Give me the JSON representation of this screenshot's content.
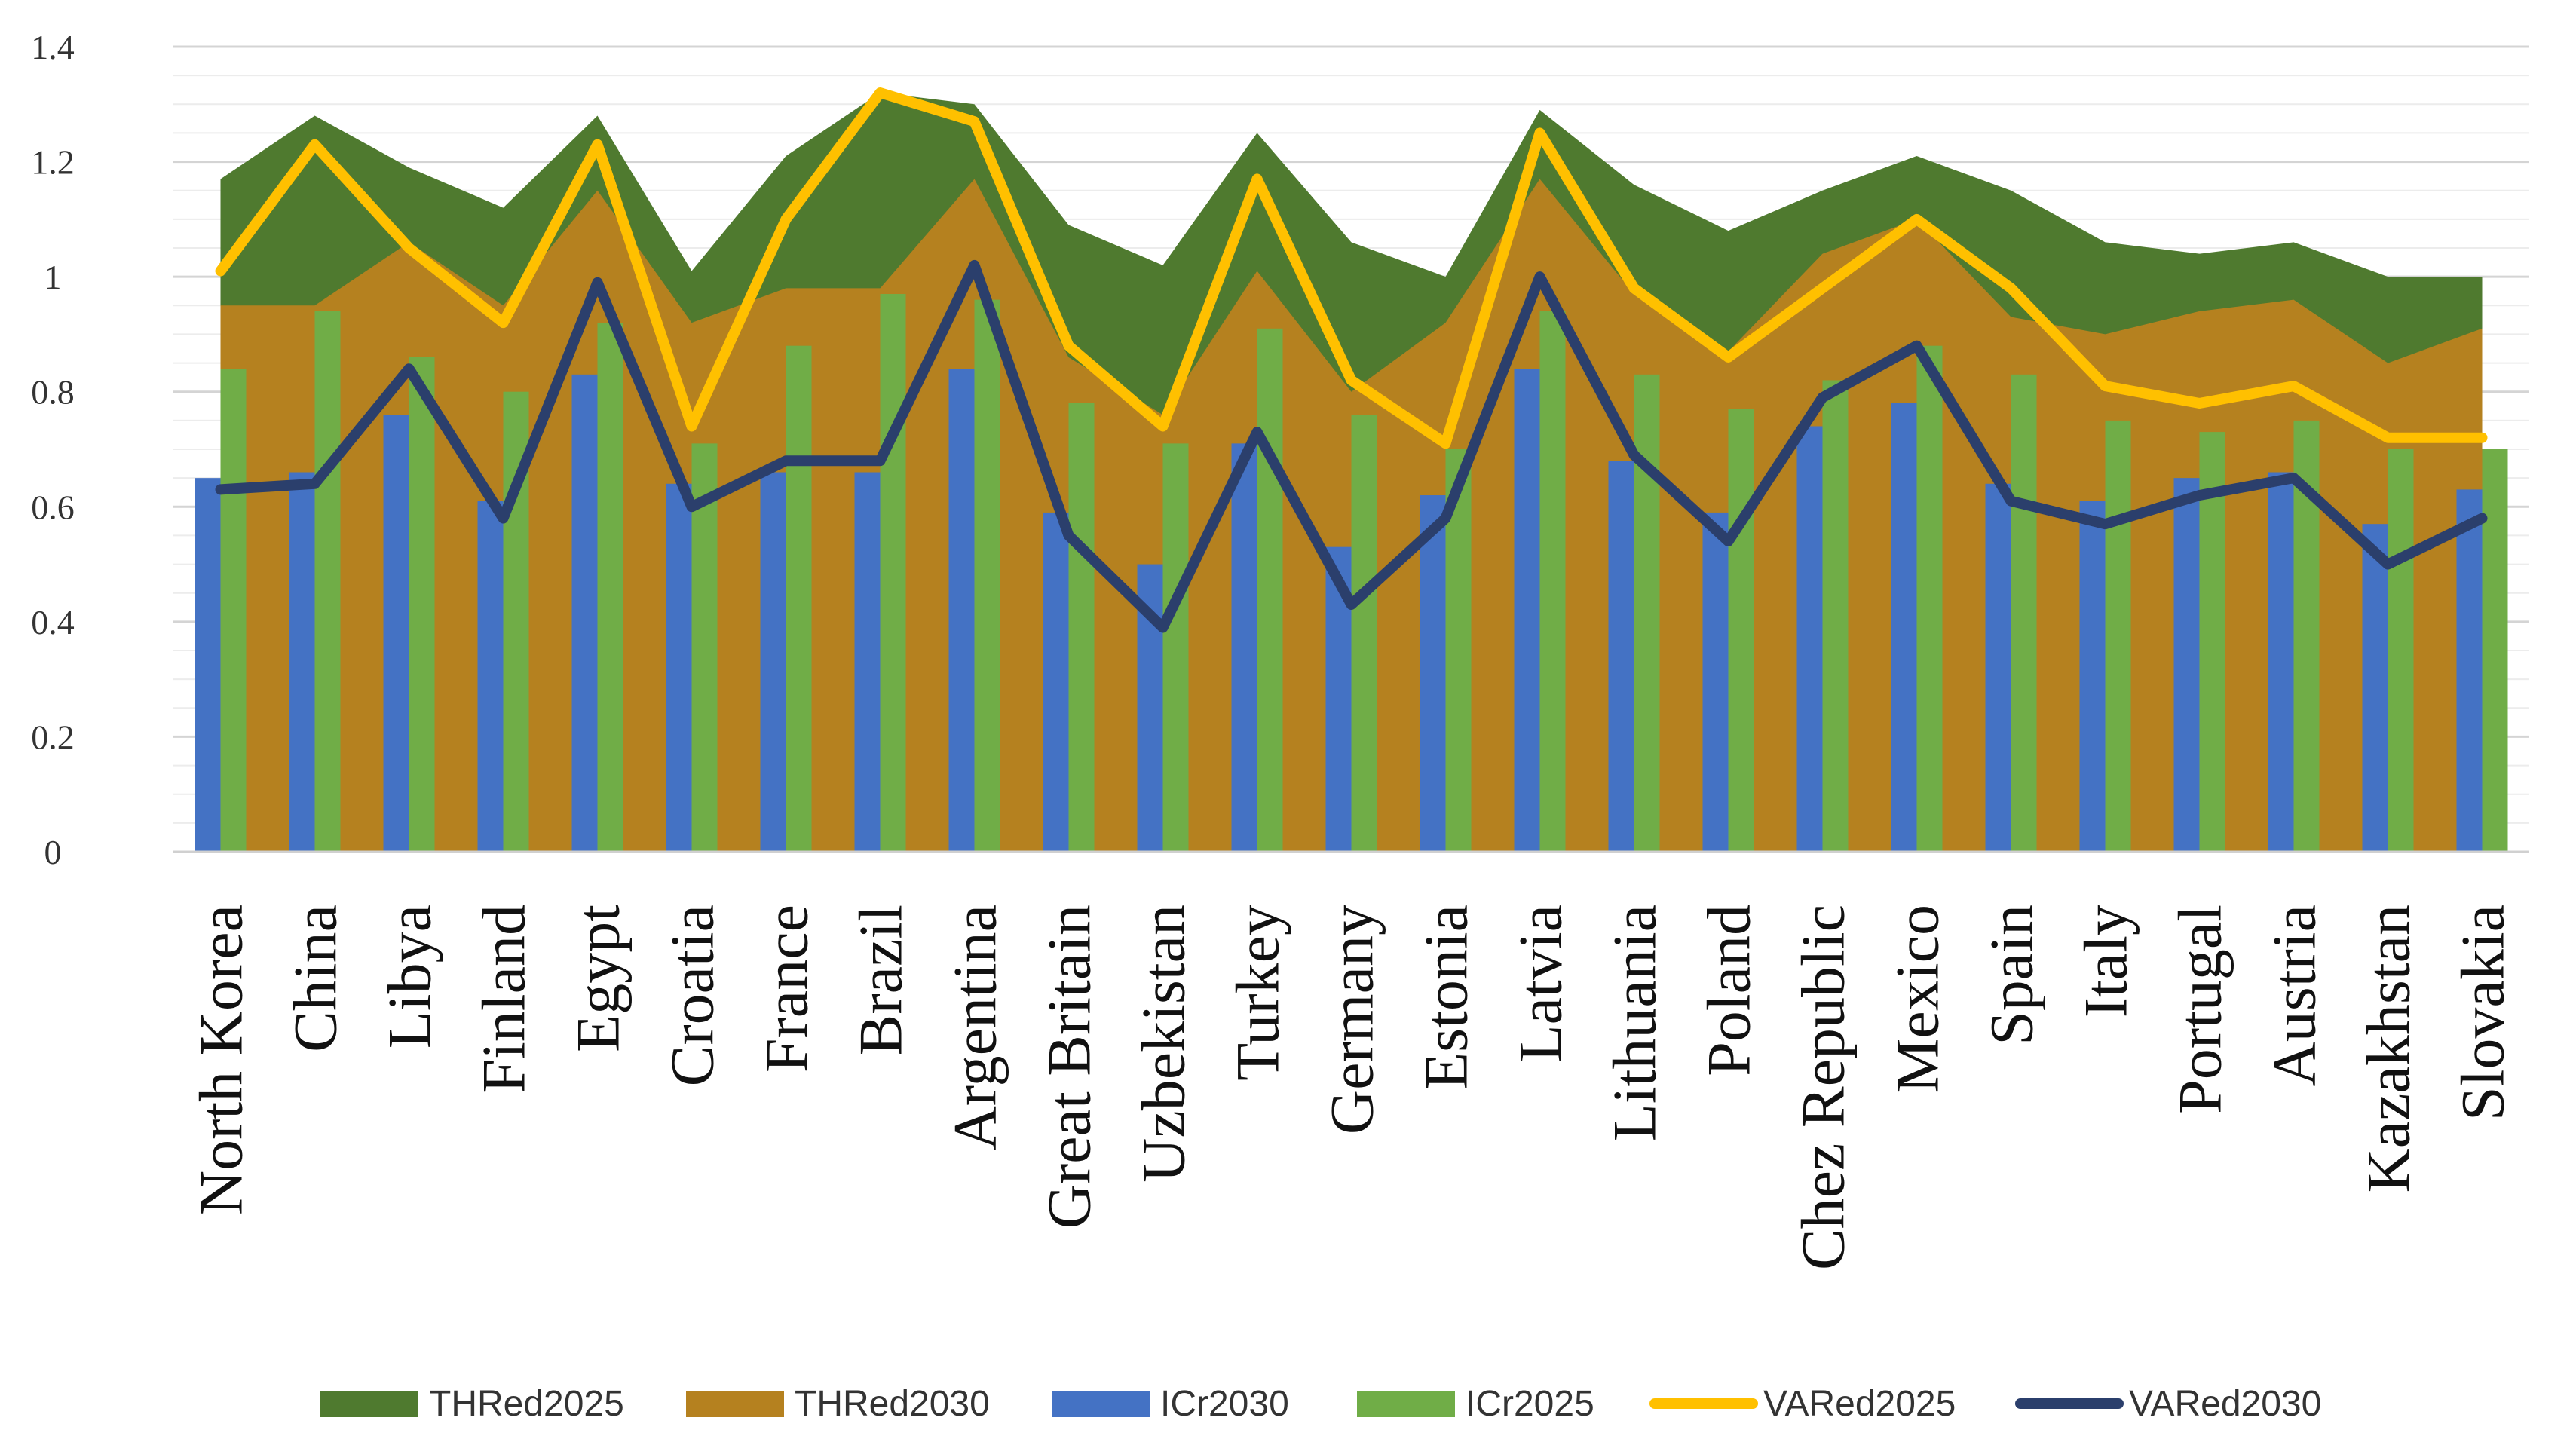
{
  "chart_data": {
    "type": "bar",
    "title": "",
    "xlabel": "",
    "ylabel": "",
    "ylim": [
      0,
      1.4
    ],
    "yticks": [
      "0",
      "0.2",
      "0.4",
      "0.6",
      "0.8",
      "1",
      "1.2",
      "1.4"
    ],
    "grid": true,
    "legend_position": "bottom",
    "categories": [
      "North Korea",
      "China",
      "Libya",
      "Finland",
      "Egypt",
      "Croatia",
      "France",
      "Brazil",
      "Argentina",
      "Great Britain",
      "Uzbekistan",
      "Turkey",
      "Germany",
      "Estonia",
      "Latvia",
      "Lithuania",
      "Poland",
      "Chez Republic",
      "Mexico",
      "Spain",
      "Italy",
      "Portugal",
      "Austria",
      "Kazakhstan",
      "Slovakia"
    ],
    "series": [
      {
        "name": "THRed2025",
        "kind": "area",
        "color": "#4f7a2f",
        "values": [
          1.17,
          1.28,
          1.19,
          1.12,
          1.28,
          1.01,
          1.21,
          1.32,
          1.3,
          1.09,
          1.02,
          1.25,
          1.06,
          1.0,
          1.29,
          1.16,
          1.08,
          1.15,
          1.21,
          1.15,
          1.06,
          1.04,
          1.06,
          1.0,
          1.0
        ]
      },
      {
        "name": "THRed2030",
        "kind": "area",
        "color": "#b5811f",
        "values": [
          0.95,
          0.95,
          1.06,
          0.95,
          1.15,
          0.92,
          0.98,
          0.98,
          1.17,
          0.86,
          0.76,
          1.01,
          0.8,
          0.92,
          1.17,
          0.97,
          0.87,
          1.04,
          1.1,
          0.93,
          0.9,
          0.94,
          0.96,
          0.85,
          0.91
        ]
      },
      {
        "name": "ICr2030",
        "kind": "bar",
        "color": "#4472c4",
        "values": [
          0.65,
          0.66,
          0.76,
          0.61,
          0.83,
          0.64,
          0.66,
          0.66,
          0.84,
          0.59,
          0.5,
          0.71,
          0.53,
          0.62,
          0.84,
          0.68,
          0.59,
          0.74,
          0.78,
          0.64,
          0.61,
          0.65,
          0.66,
          0.57,
          0.63
        ]
      },
      {
        "name": "ICr2025",
        "kind": "bar",
        "color": "#70ad47",
        "values": [
          0.84,
          0.94,
          0.86,
          0.8,
          0.92,
          0.71,
          0.88,
          0.97,
          0.96,
          0.78,
          0.71,
          0.91,
          0.76,
          0.7,
          0.94,
          0.83,
          0.77,
          0.82,
          0.88,
          0.83,
          0.75,
          0.73,
          0.75,
          0.7,
          0.7
        ]
      },
      {
        "name": "VARed2025",
        "kind": "line",
        "color": "#ffc000",
        "values": [
          1.01,
          1.23,
          1.05,
          0.92,
          1.23,
          0.74,
          1.1,
          1.32,
          1.27,
          0.88,
          0.74,
          1.17,
          0.82,
          0.71,
          1.25,
          0.98,
          0.86,
          0.98,
          1.1,
          0.98,
          0.81,
          0.78,
          0.81,
          0.72,
          0.72
        ]
      },
      {
        "name": "VARed2030",
        "kind": "line",
        "color": "#2b3f6c",
        "values": [
          0.63,
          0.64,
          0.84,
          0.58,
          0.99,
          0.6,
          0.68,
          0.68,
          1.02,
          0.55,
          0.39,
          0.73,
          0.43,
          0.58,
          1.0,
          0.69,
          0.54,
          0.79,
          0.88,
          0.61,
          0.57,
          0.62,
          0.65,
          0.5,
          0.58
        ]
      }
    ]
  }
}
